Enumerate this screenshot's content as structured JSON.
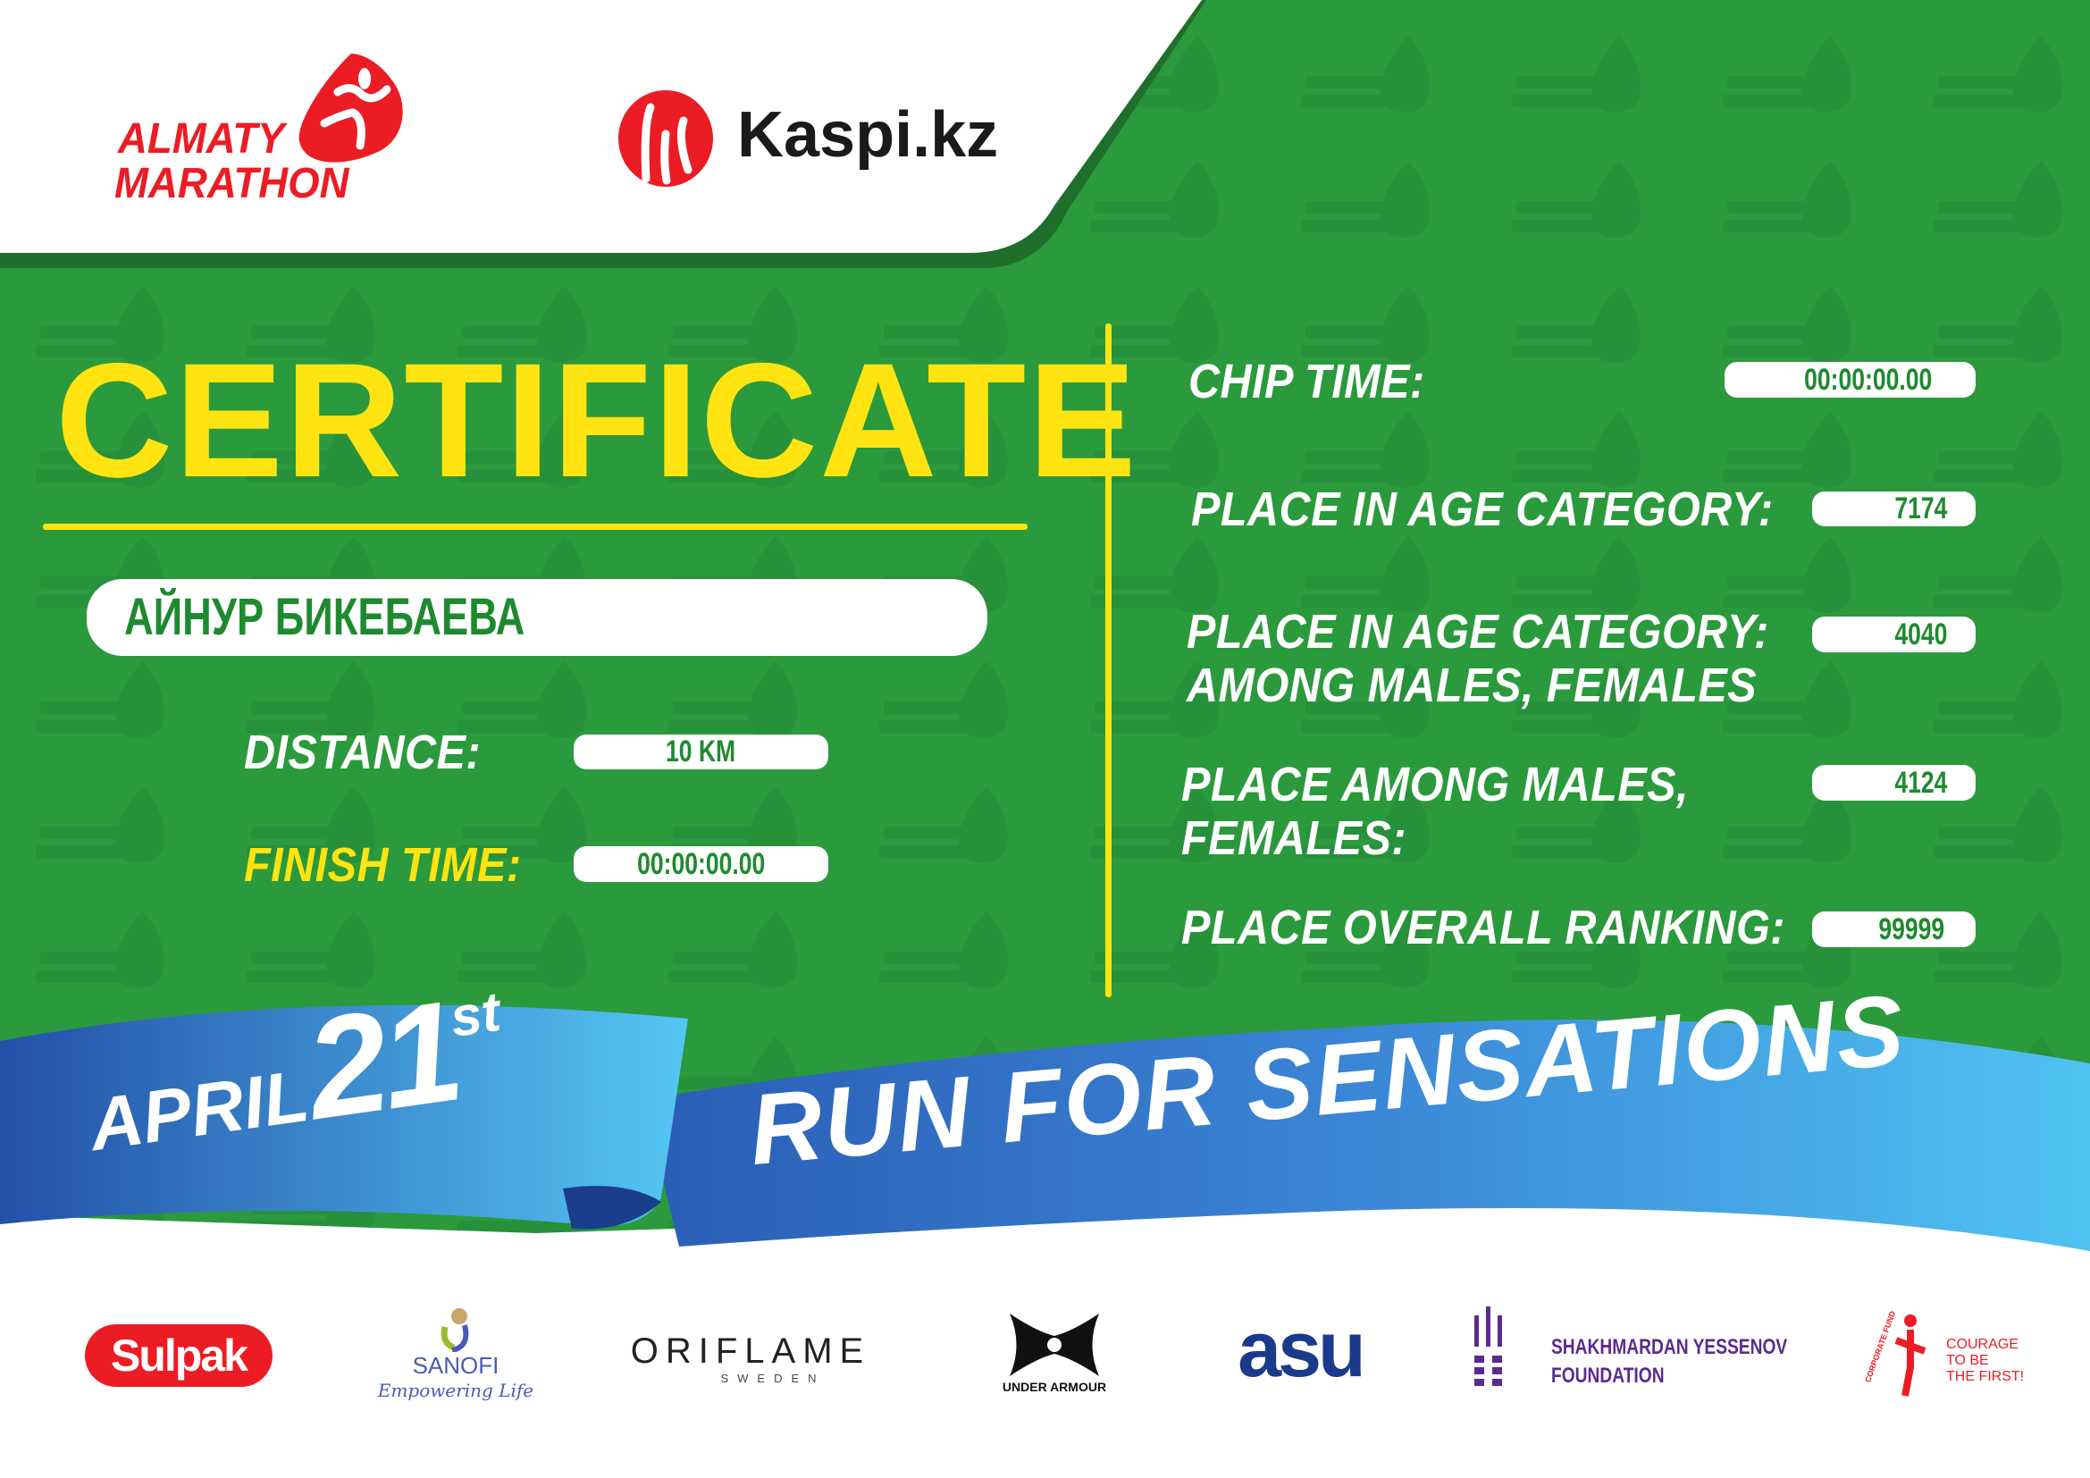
{
  "header": {
    "logo_almaty": {
      "line1": "ALMATY",
      "line2": "MARATHON"
    },
    "logo_kaspi": "Kaspi.kz"
  },
  "certificate": {
    "title": "CERTIFICATE",
    "participant_name": "АЙНУР БИКЕБАЕВА",
    "distance_label": "DISTANCE:",
    "distance_value": "10 KM",
    "finish_time_label": "FINISH TIME:",
    "finish_time_value": "00:00:00.00",
    "chip_time_label": "CHIP TIME:",
    "chip_time_value": "00:00:00.00",
    "age_category_label": "PLACE IN AGE CATEGORY:",
    "age_category_value": "7174",
    "age_category_gender_label_1": "PLACE IN AGE CATEGORY:",
    "age_category_gender_label_2": "AMONG MALES, FEMALES",
    "age_category_gender_value": "4040",
    "gender_place_label_1": "PLACE AMONG MALES,",
    "gender_place_label_2": "FEMALES:",
    "gender_place_value": "4124",
    "overall_label": "PLACE OVERALL RANKING:",
    "overall_value": "99999"
  },
  "banner": {
    "month": "APRIL",
    "day": "21",
    "suffix": "st",
    "slogan": "RUN FOR SENSATIONS"
  },
  "sponsors": {
    "sulpak": "Sulpak",
    "sanofi": "SANOFI",
    "sanofi_tagline": "Empowering Life",
    "oriflame": "ORIFLAME",
    "oriflame_sub": "SWEDEN",
    "under_armour": "UNDER ARMOUR",
    "asu": "asu",
    "yessenov_1": "SHAKHMARDAN YESSENOV",
    "yessenov_2": "FOUNDATION",
    "courage_arc": "CORPORATE FUND",
    "courage_1": "COURAGE",
    "courage_2": "TO BE",
    "courage_3": "THE FIRST!"
  },
  "colors": {
    "green": "#2a9a3c",
    "dark_green": "#1f6e2c",
    "yellow": "#ffe411",
    "red": "#ec1c24",
    "blue": "#2f6cc4",
    "light_blue": "#4fc0f0"
  }
}
